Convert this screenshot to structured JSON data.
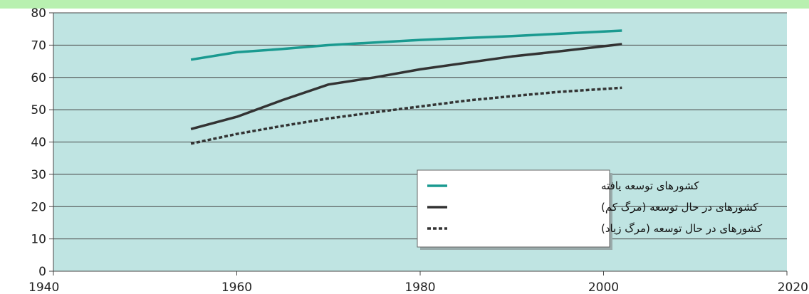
{
  "chart_data": {
    "type": "line",
    "title": "",
    "xlabel": "",
    "ylabel": "",
    "xlim": [
      1940,
      2020
    ],
    "ylim": [
      0,
      80
    ],
    "x_ticks": [
      1940,
      1960,
      1980,
      2000,
      2020
    ],
    "y_ticks": [
      0,
      10,
      20,
      30,
      40,
      50,
      60,
      70,
      80
    ],
    "grid": "horizontal",
    "background_color": "#bfe4e2",
    "legend_position": "bottom-right",
    "series": [
      {
        "name": "کشورهای توسعه یافته",
        "color": "#1a9a90",
        "style": "solid",
        "x": [
          1955,
          1960,
          1965,
          1970,
          1975,
          1980,
          1985,
          1990,
          1995,
          2002
        ],
        "values": [
          65.5,
          67.8,
          68.8,
          70.0,
          70.8,
          71.6,
          72.2,
          72.8,
          73.5,
          74.5
        ]
      },
      {
        "name": "کشورهای در حال توسعه (مرگ کم)",
        "color": "#333333",
        "style": "solid",
        "x": [
          1955,
          1960,
          1965,
          1970,
          1975,
          1980,
          1985,
          1990,
          1995,
          2002
        ],
        "values": [
          44,
          47.8,
          53,
          57.8,
          60,
          62.5,
          64.5,
          66.5,
          68,
          70.3
        ]
      },
      {
        "name": "کشورهای در حال توسعه (مرگ زیاد)",
        "color": "#333333",
        "style": "dashed",
        "x": [
          1955,
          1960,
          1965,
          1970,
          1975,
          1980,
          1985,
          1990,
          1995,
          2002
        ],
        "values": [
          39.5,
          42.5,
          45,
          47.3,
          49.2,
          51,
          52.8,
          54.2,
          55.5,
          56.8
        ]
      }
    ]
  }
}
